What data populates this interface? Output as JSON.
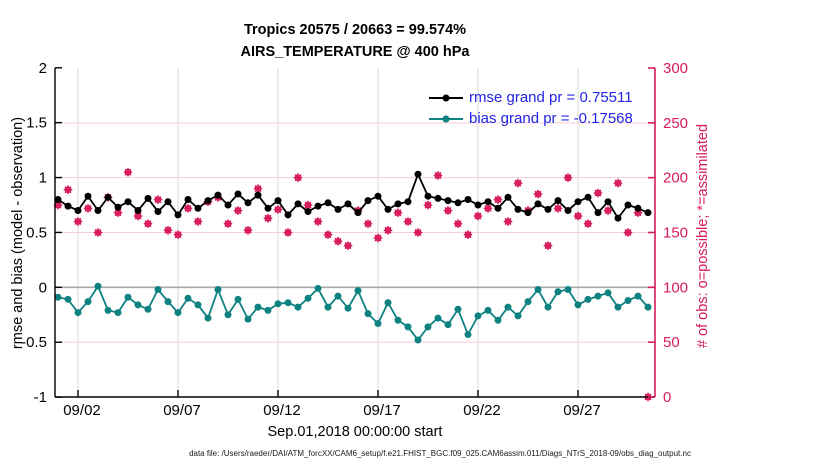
{
  "title": {
    "line1": "Tropics 20575 / 20663 = 99.574%",
    "line2": "AIRS_TEMPERATURE @ 400 hPa"
  },
  "legend": {
    "items": [
      {
        "label": "rmse grand pr = 0.75511",
        "color": "#000000"
      },
      {
        "label": "bias grand pr = -0.17568",
        "color": "#0e8280"
      }
    ],
    "text_color": "#2323e6"
  },
  "footer": "data file: /Users/raeder/DAI/ATM_forcXX/CAM6_setup/f.e21.FHIST_BGC.f09_025.CAM6assim.011/Diags_NTrS_2018-09/obs_diag_output.nc",
  "chart_data": {
    "type": "line",
    "title": "Tropics 20575 / 20663 = 99.574% — AIRS_TEMPERATURE @ 400 hPa",
    "rmse_grand_mean": 0.75511,
    "bias_grand_mean": -0.17568,
    "obs_possible_total": 20663,
    "obs_assimilated_total": 20575,
    "grid": "on",
    "legend_position": "top-right-inside",
    "colors": {
      "rmse": "#000000",
      "bias": "#0e8280",
      "obs": "#d81b5d",
      "zero_line": "#a9a9a9",
      "h_grid": "#f3cdd8",
      "v_grid": "#d7d7d7"
    },
    "left_axis": {
      "label": "rmse and bias (model - observation)",
      "range": [
        -1,
        2
      ],
      "ticks": [
        {
          "v": 2,
          "label": "2"
        },
        {
          "v": 1.5,
          "label": "1.5"
        },
        {
          "v": 1,
          "label": "1"
        },
        {
          "v": 0.5,
          "label": "0.5"
        },
        {
          "v": 0,
          "label": "0"
        },
        {
          "v": -0.5,
          "label": "-0.5"
        },
        {
          "v": -1,
          "label": "-1"
        }
      ]
    },
    "right_axis": {
      "label": "# of obs: o=possible; *=assimilated",
      "range": [
        0,
        300
      ],
      "ticks": [
        {
          "v": 300,
          "label": "300"
        },
        {
          "v": 250,
          "label": "250"
        },
        {
          "v": 200,
          "label": "200"
        },
        {
          "v": 150,
          "label": "150"
        },
        {
          "v": 100,
          "label": "100"
        },
        {
          "v": 50,
          "label": "50"
        },
        {
          "v": 0,
          "label": "0"
        }
      ]
    },
    "x_axis": {
      "label": "Sep.01,2018 00:00:00 start",
      "units": "days since 2018-09-01 00:00",
      "range_days": [
        -0.15,
        29.85
      ],
      "ticks": [
        {
          "t": 1,
          "label": "09/02"
        },
        {
          "t": 6,
          "label": "09/07"
        },
        {
          "t": 11,
          "label": "09/12"
        },
        {
          "t": 16,
          "label": "09/17"
        },
        {
          "t": 21,
          "label": "09/22"
        },
        {
          "t": 26,
          "label": "09/27"
        }
      ]
    },
    "x_days": [
      0,
      0.5,
      1,
      1.5,
      2,
      2.5,
      3,
      3.5,
      4,
      4.5,
      5,
      5.5,
      6,
      6.5,
      7,
      7.5,
      8,
      8.5,
      9,
      9.5,
      10,
      10.5,
      11,
      11.5,
      12,
      12.5,
      13,
      13.5,
      14,
      14.5,
      15,
      15.5,
      16,
      16.5,
      17,
      17.5,
      18,
      18.5,
      19,
      19.5,
      20,
      20.5,
      21,
      21.5,
      22,
      22.5,
      23,
      23.5,
      24,
      24.5,
      25,
      25.5,
      26,
      26.5,
      27,
      27.5,
      28,
      28.5,
      29,
      29.5
    ],
    "series": [
      {
        "name": "rmse",
        "axis": "left",
        "marker": "filled-circle",
        "values": [
          0.8,
          0.74,
          0.7,
          0.83,
          0.7,
          0.82,
          0.73,
          0.78,
          0.7,
          0.81,
          0.69,
          0.78,
          0.66,
          0.8,
          0.72,
          0.79,
          0.84,
          0.75,
          0.85,
          0.77,
          0.84,
          0.72,
          0.79,
          0.66,
          0.76,
          0.69,
          0.74,
          0.77,
          0.71,
          0.76,
          0.68,
          0.79,
          0.83,
          0.71,
          0.76,
          0.78,
          1.03,
          0.83,
          0.81,
          0.79,
          0.77,
          0.8,
          0.75,
          0.78,
          0.72,
          0.82,
          0.71,
          0.68,
          0.76,
          0.71,
          0.79,
          0.7,
          0.78,
          0.82,
          0.68,
          0.78,
          0.63,
          0.75,
          0.72,
          0.68
        ]
      },
      {
        "name": "bias",
        "axis": "left",
        "marker": "filled-circle",
        "values": [
          -0.09,
          -0.11,
          -0.23,
          -0.13,
          0.01,
          -0.21,
          -0.23,
          -0.09,
          -0.16,
          -0.2,
          -0.02,
          -0.13,
          -0.23,
          -0.1,
          -0.16,
          -0.28,
          -0.02,
          -0.25,
          -0.11,
          -0.29,
          -0.18,
          -0.21,
          -0.15,
          -0.14,
          -0.18,
          -0.1,
          -0.01,
          -0.18,
          -0.08,
          -0.19,
          -0.03,
          -0.24,
          -0.33,
          -0.14,
          -0.3,
          -0.36,
          -0.48,
          -0.36,
          -0.28,
          -0.34,
          -0.2,
          -0.43,
          -0.26,
          -0.21,
          -0.3,
          -0.18,
          -0.26,
          -0.13,
          -0.02,
          -0.18,
          -0.04,
          -0.02,
          -0.16,
          -0.11,
          -0.08,
          -0.05,
          -0.18,
          -0.12,
          -0.08,
          -0.18
        ]
      },
      {
        "name": "num_obs (o=possible and *=assimilated markers overlap)",
        "axis": "right",
        "marker": "asterisk-and-circle",
        "values": [
          175,
          189,
          160,
          172,
          150,
          182,
          168,
          205,
          165,
          158,
          180,
          152,
          148,
          172,
          160,
          178,
          182,
          158,
          170,
          152,
          190,
          163,
          171,
          150,
          200,
          175,
          160,
          148,
          142,
          138,
          170,
          158,
          145,
          152,
          168,
          160,
          150,
          175,
          202,
          170,
          158,
          148,
          165,
          172,
          180,
          160,
          195,
          170,
          185,
          138,
          172,
          200,
          165,
          158,
          186,
          170,
          195,
          150,
          168,
          0
        ]
      }
    ]
  }
}
